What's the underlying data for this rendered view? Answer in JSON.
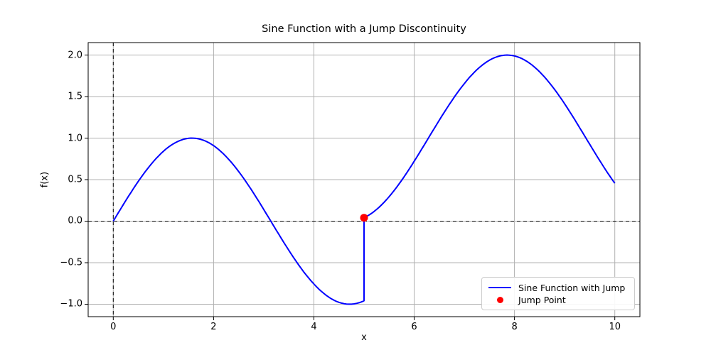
{
  "chart_data": {
    "type": "line",
    "title": "Sine Function with a Jump Discontinuity",
    "xlabel": "x",
    "ylabel": "f(x)",
    "xlim": [
      -0.5,
      10.5
    ],
    "ylim": [
      -1.15,
      2.15
    ],
    "xticks": [
      0,
      2,
      4,
      6,
      8,
      10
    ],
    "xtick_labels": [
      "0",
      "2",
      "4",
      "6",
      "8",
      "10"
    ],
    "yticks": [
      -1.0,
      -0.5,
      0.0,
      0.5,
      1.0,
      1.5,
      2.0
    ],
    "ytick_labels": [
      "−1.0",
      "−0.5",
      "0.0",
      "0.5",
      "1.0",
      "1.5",
      "2.0"
    ],
    "grid": true,
    "colors": {
      "line": "#0000ff",
      "marker": "#ff0000",
      "grid": "#b0b0b0",
      "axline": "#000000",
      "spine": "#000000"
    },
    "reference_lines": [
      {
        "axis": "v",
        "value": 0,
        "style": "dashed"
      },
      {
        "axis": "h",
        "value": 0,
        "style": "dashed"
      }
    ],
    "series": [
      {
        "name": "Sine Function with Jump",
        "type": "line",
        "color": "#0000ff",
        "segments": [
          {
            "fn": "sin",
            "offset": 0,
            "domain": [
              0,
              5
            ]
          },
          {
            "fn": "sin",
            "offset": 1,
            "domain": [
              5,
              10
            ]
          }
        ],
        "jump": {
          "x": 5,
          "y_left": -0.959,
          "y_right": 0.041
        },
        "sample_x": [
          0,
          0.5,
          1,
          1.5,
          2,
          2.5,
          3,
          3.5,
          4,
          4.5,
          5,
          5,
          5.5,
          6,
          6.5,
          7,
          7.5,
          8,
          8.5,
          9,
          9.5,
          10
        ],
        "sample_y": [
          0,
          0.479,
          0.841,
          0.997,
          0.909,
          0.599,
          0.141,
          -0.351,
          -0.757,
          -0.978,
          -0.959,
          0.041,
          0.294,
          0.721,
          1.215,
          1.657,
          1.938,
          1.989,
          1.798,
          1.412,
          0.925,
          0.456
        ]
      },
      {
        "name": "Jump Point",
        "type": "scatter",
        "color": "#ff0000",
        "marker": "circle",
        "points": [
          [
            5,
            0.041
          ]
        ]
      }
    ],
    "legend": {
      "position": "lower right",
      "entries": [
        "Sine Function with Jump",
        "Jump Point"
      ]
    }
  }
}
